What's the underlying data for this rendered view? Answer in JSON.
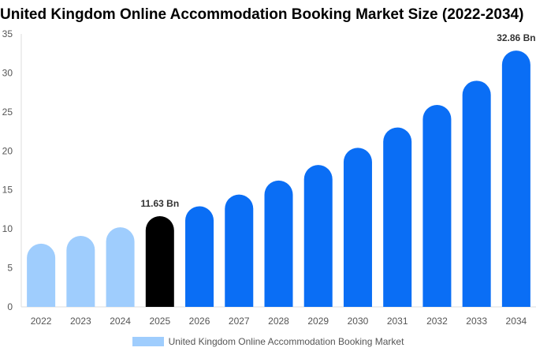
{
  "chart_data": {
    "type": "bar",
    "title": "United Kingdom Online Accommodation Booking Market Size (2022-2034)",
    "categories": [
      "2022",
      "2023",
      "2024",
      "2025",
      "2026",
      "2027",
      "2028",
      "2029",
      "2030",
      "2031",
      "2032",
      "2033",
      "2034"
    ],
    "series": [
      {
        "name": "United Kingdom Online Accommodation Booking Market",
        "values": [
          8.1,
          9.1,
          10.2,
          11.63,
          12.9,
          14.4,
          16.2,
          18.2,
          20.4,
          23.0,
          25.9,
          29.0,
          32.86
        ]
      }
    ],
    "data_labels": [
      {
        "category": "2025",
        "text": "11.63 Bn"
      },
      {
        "category": "2034",
        "text": "32.86 Bn"
      }
    ],
    "ylim": [
      0,
      35
    ],
    "yticks": [
      0,
      5,
      10,
      15,
      20,
      25,
      30,
      35
    ],
    "xlabel": "",
    "ylabel": "",
    "grid": false,
    "legend": "bottom-center",
    "colors": {
      "historical": "#9FCDFD",
      "current": "#000000",
      "forecast": "#0A6EF5",
      "axis": "#dddddd",
      "tick_text": "#555555",
      "label_text": "#333333"
    },
    "historical_categories": [
      "2022",
      "2023",
      "2024"
    ],
    "current_category": "2025"
  }
}
